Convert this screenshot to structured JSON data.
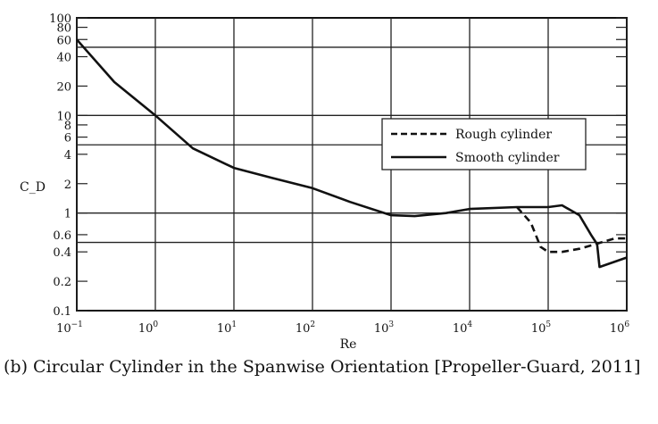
{
  "chart_data": {
    "type": "line",
    "title": "",
    "xlabel": "Re",
    "ylabel": "C_D",
    "xscale": "log",
    "yscale": "log",
    "xlim": [
      0.1,
      1000000
    ],
    "ylim": [
      0.1,
      100
    ],
    "xticks": [
      {
        "v": 0.1,
        "base": "10",
        "exp": "−1"
      },
      {
        "v": 1,
        "base": "10",
        "exp": "0"
      },
      {
        "v": 10,
        "base": "10",
        "exp": "1"
      },
      {
        "v": 100,
        "base": "10",
        "exp": "2"
      },
      {
        "v": 1000,
        "base": "10",
        "exp": "3"
      },
      {
        "v": 10000,
        "base": "10",
        "exp": "4"
      },
      {
        "v": 100000,
        "base": "10",
        "exp": "5"
      },
      {
        "v": 1000000,
        "base": "10",
        "exp": "6"
      }
    ],
    "yticks": [
      {
        "v": 100,
        "label": "100"
      },
      {
        "v": 80,
        "label": "80"
      },
      {
        "v": 60,
        "label": "60"
      },
      {
        "v": 40,
        "label": "40"
      },
      {
        "v": 20,
        "label": "20"
      },
      {
        "v": 10,
        "label": "10"
      },
      {
        "v": 8,
        "label": "8"
      },
      {
        "v": 6,
        "label": "6"
      },
      {
        "v": 4,
        "label": "4"
      },
      {
        "v": 2,
        "label": "2"
      },
      {
        "v": 1,
        "label": "1"
      },
      {
        "v": 0.6,
        "label": "0.6"
      },
      {
        "v": 0.4,
        "label": "0.4"
      },
      {
        "v": 0.2,
        "label": "0.2"
      },
      {
        "v": 0.1,
        "label": "0.1"
      }
    ],
    "hgrid": [
      50,
      10,
      5,
      1,
      0.5
    ],
    "legend_position": "right",
    "series": [
      {
        "name": "Rough cylinder",
        "style": "dashed",
        "x": [
          40000,
          60000,
          80000,
          100000,
          150000,
          250000,
          400000,
          700000,
          1000000
        ],
        "y": [
          1.15,
          0.8,
          0.45,
          0.4,
          0.4,
          0.43,
          0.48,
          0.55,
          0.55
        ]
      },
      {
        "name": "Smooth cylinder",
        "style": "solid",
        "x": [
          0.1,
          0.3,
          1,
          3,
          10,
          30,
          100,
          300,
          1000,
          2000,
          5000,
          10000,
          40000,
          100000,
          150000,
          250000,
          350000,
          420000,
          450000,
          1000000
        ],
        "y": [
          60,
          22,
          10,
          4.6,
          2.9,
          2.3,
          1.8,
          1.3,
          0.95,
          0.93,
          1.0,
          1.1,
          1.15,
          1.15,
          1.2,
          0.95,
          0.6,
          0.48,
          0.28,
          0.35
        ]
      }
    ]
  },
  "caption": "(b) Circular Cylinder in the Spanwise Orientation [Propeller-Guard, 2011]"
}
